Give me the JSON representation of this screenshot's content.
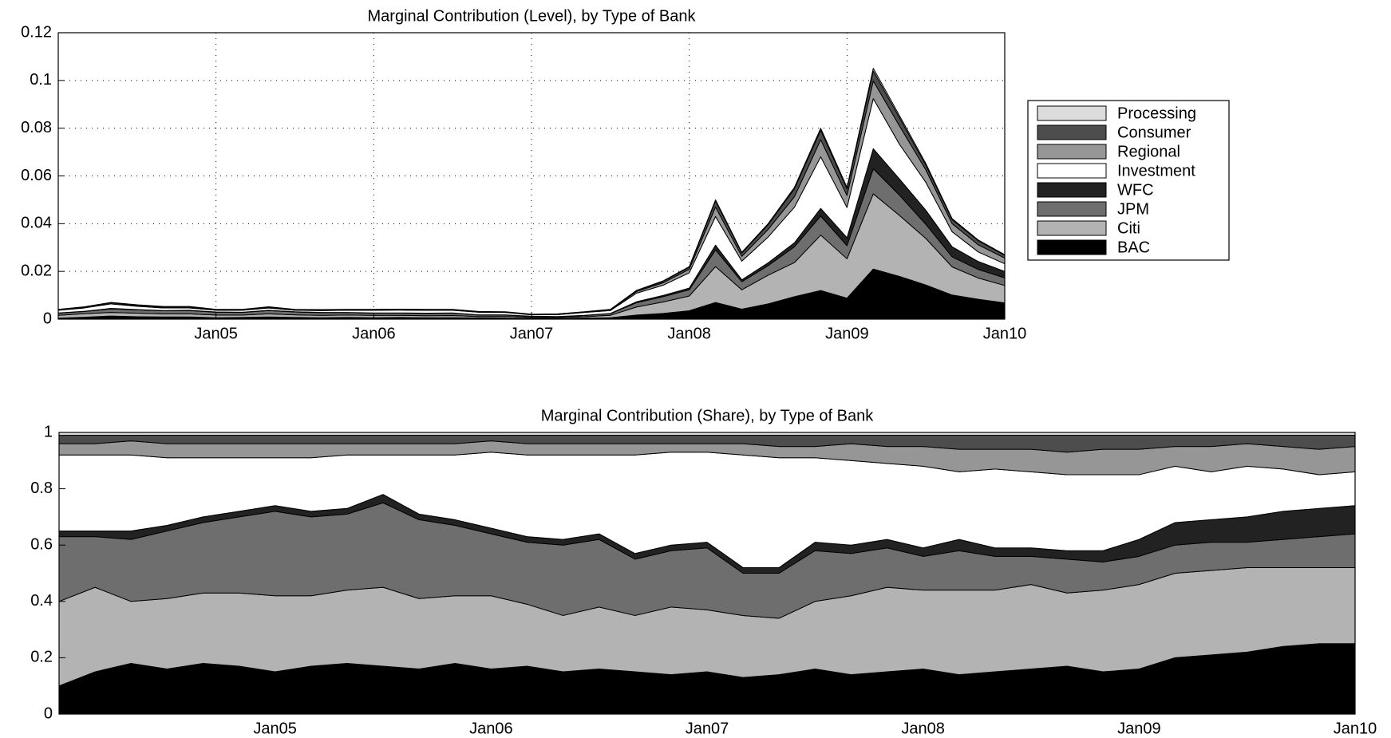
{
  "chart_data": [
    {
      "type": "area",
      "title": "Marginal Contribution (Level), by Type of Bank",
      "x": [
        "2004-01",
        "2004-03",
        "2004-05",
        "2004-07",
        "2004-09",
        "2004-11",
        "2005-01",
        "2005-03",
        "2005-05",
        "2005-07",
        "2005-09",
        "2005-11",
        "2006-01",
        "2006-03",
        "2006-05",
        "2006-07",
        "2006-09",
        "2006-11",
        "2007-01",
        "2007-03",
        "2007-05",
        "2007-07",
        "2007-09",
        "2007-11",
        "2008-01",
        "2008-03",
        "2008-05",
        "2008-07",
        "2008-09",
        "2008-11",
        "2009-01",
        "2009-03",
        "2009-05",
        "2009-07",
        "2009-09",
        "2009-11",
        "2010-01"
      ],
      "series": [
        {
          "name": "BAC",
          "color": "#000000",
          "values": [
            0.0004,
            0.0008,
            0.0013,
            0.001,
            0.0009,
            0.0009,
            0.0006,
            0.0007,
            0.0009,
            0.0007,
            0.0006,
            0.0007,
            0.0006,
            0.0007,
            0.0006,
            0.0006,
            0.0005,
            0.0004,
            0.0003,
            0.0003,
            0.0004,
            0.0006,
            0.0017,
            0.0024,
            0.0035,
            0.007,
            0.0042,
            0.0064,
            0.0094,
            0.012,
            0.0088,
            0.021,
            0.0179,
            0.0143,
            0.0101,
            0.0083,
            0.0068
          ]
        },
        {
          "name": "Citi",
          "color": "#b3b3b3",
          "values": [
            0.0012,
            0.0015,
            0.0015,
            0.0015,
            0.0013,
            0.0013,
            0.0011,
            0.001,
            0.0013,
            0.0011,
            0.001,
            0.001,
            0.001,
            0.0009,
            0.0008,
            0.0009,
            0.0006,
            0.0007,
            0.0004,
            0.0004,
            0.0006,
            0.001,
            0.0034,
            0.0048,
            0.0062,
            0.015,
            0.0081,
            0.012,
            0.0143,
            0.0232,
            0.0165,
            0.0315,
            0.0255,
            0.0195,
            0.0118,
            0.0089,
            0.0073
          ]
        },
        {
          "name": "JPM",
          "color": "#6e6e6e",
          "values": [
            0.0009,
            0.0009,
            0.0015,
            0.0014,
            0.0013,
            0.0014,
            0.0012,
            0.0011,
            0.0014,
            0.0012,
            0.0011,
            0.001,
            0.0009,
            0.0009,
            0.001,
            0.001,
            0.0006,
            0.0006,
            0.0004,
            0.0003,
            0.0005,
            0.0007,
            0.0018,
            0.0022,
            0.0026,
            0.007,
            0.0034,
            0.004,
            0.0066,
            0.008,
            0.0055,
            0.0105,
            0.0085,
            0.0059,
            0.0042,
            0.0036,
            0.0032
          ]
        },
        {
          "name": "WFC",
          "color": "#222222",
          "values": [
            0.0001,
            0.0001,
            0.0002,
            0.0001,
            0.0001,
            0.0001,
            0.0001,
            0.0001,
            0.0001,
            0.0001,
            0.0001,
            0.0001,
            0.0001,
            0.0001,
            0.0001,
            0.0001,
            0.0001,
            0.0001,
            0.0001,
            0.0001,
            0.0001,
            0.0001,
            0.0004,
            0.0005,
            0.0007,
            0.002,
            0.0008,
            0.0012,
            0.0017,
            0.0032,
            0.0033,
            0.0084,
            0.0068,
            0.0059,
            0.0042,
            0.0033,
            0.0027
          ]
        },
        {
          "name": "Investment",
          "color": "#ffffff",
          "values": [
            0.0011,
            0.0014,
            0.0019,
            0.0014,
            0.0011,
            0.001,
            0.0007,
            0.0008,
            0.001,
            0.0006,
            0.0008,
            0.0009,
            0.0011,
            0.0012,
            0.0012,
            0.0011,
            0.0011,
            0.001,
            0.0006,
            0.0008,
            0.0012,
            0.0012,
            0.0036,
            0.0043,
            0.0064,
            0.012,
            0.0078,
            0.0108,
            0.0149,
            0.0216,
            0.0127,
            0.021,
            0.0145,
            0.0117,
            0.0063,
            0.004,
            0.0032
          ]
        },
        {
          "name": "Regional",
          "color": "#969696",
          "values": [
            0.0002,
            0.0002,
            0.0004,
            0.0003,
            0.0003,
            0.0003,
            0.0002,
            0.0002,
            0.0002,
            0.0002,
            0.0002,
            0.0002,
            0.0002,
            0.0002,
            0.0002,
            0.0002,
            0.0001,
            0.0001,
            0.0001,
            0.0001,
            0.0001,
            0.0002,
            0.0007,
            0.001,
            0.0015,
            0.004,
            0.002,
            0.0032,
            0.0044,
            0.0072,
            0.005,
            0.0074,
            0.0077,
            0.0052,
            0.0034,
            0.003,
            0.0024
          ]
        },
        {
          "name": "Consumer",
          "color": "#4d4d4d",
          "values": [
            0.0001,
            0.0002,
            0.0001,
            0.0002,
            0.0002,
            0.0002,
            0.0001,
            0.0001,
            0.0002,
            0.0001,
            0.0001,
            0.0001,
            0.0001,
            0.0001,
            0.0001,
            0.0001,
            0.0001,
            0.0001,
            0.0001,
            0.0001,
            0.0001,
            0.0002,
            0.0004,
            0.0006,
            0.0009,
            0.0025,
            0.0014,
            0.002,
            0.0033,
            0.004,
            0.0028,
            0.0042,
            0.0034,
            0.002,
            0.0017,
            0.0017,
            0.0011
          ]
        },
        {
          "name": "Processing",
          "color": "#dcdcdc",
          "values": [
            0.0001,
            0.0001,
            0.0001,
            0.0001,
            0.0001,
            0.0001,
            0.0001,
            0.0001,
            0.0001,
            0.0001,
            0.0001,
            0.0001,
            0.0001,
            0.0001,
            0.0001,
            0.0001,
            0.0001,
            0.0001,
            0.0001,
            0.0001,
            0.0001,
            0.0001,
            0.0001,
            0.0002,
            0.0002,
            0.0005,
            0.0003,
            0.0004,
            0.0006,
            0.0008,
            0.0006,
            0.0011,
            0.0009,
            0.0007,
            0.0004,
            0.0003,
            0.0003
          ]
        }
      ],
      "xlim": [
        "2004-01",
        "2010-01"
      ],
      "xticks": [
        {
          "value": "2005-01",
          "label": "Jan05"
        },
        {
          "value": "2006-01",
          "label": "Jan06"
        },
        {
          "value": "2007-01",
          "label": "Jan07"
        },
        {
          "value": "2008-01",
          "label": "Jan08"
        },
        {
          "value": "2009-01",
          "label": "Jan09"
        },
        {
          "value": "2010-01",
          "label": "Jan10"
        }
      ],
      "ylim": [
        0,
        0.12
      ],
      "yticks": [
        0,
        0.02,
        0.04,
        0.06,
        0.08,
        0.1,
        0.12
      ],
      "grid": true,
      "legend": "right"
    },
    {
      "type": "area",
      "title": "Marginal Contribution (Share), by Type of Bank",
      "x": [
        "2004-01",
        "2004-03",
        "2004-05",
        "2004-07",
        "2004-09",
        "2004-11",
        "2005-01",
        "2005-03",
        "2005-05",
        "2005-07",
        "2005-09",
        "2005-11",
        "2006-01",
        "2006-03",
        "2006-05",
        "2006-07",
        "2006-09",
        "2006-11",
        "2007-01",
        "2007-03",
        "2007-05",
        "2007-07",
        "2007-09",
        "2007-11",
        "2008-01",
        "2008-03",
        "2008-05",
        "2008-07",
        "2008-09",
        "2008-11",
        "2009-01",
        "2009-03",
        "2009-05",
        "2009-07",
        "2009-09",
        "2009-11",
        "2010-01"
      ],
      "series": [
        {
          "color": "#000000",
          "values": [
            0.1,
            0.15,
            0.18,
            0.16,
            0.18,
            0.17,
            0.15,
            0.17,
            0.18,
            0.17,
            0.16,
            0.18,
            0.16,
            0.17,
            0.15,
            0.16,
            0.15,
            0.14,
            0.15,
            0.13,
            0.14,
            0.16,
            0.14,
            0.15,
            0.16,
            0.14,
            0.15,
            0.16,
            0.17,
            0.15,
            0.16,
            0.2,
            0.21,
            0.22,
            0.24,
            0.25,
            0.25
          ]
        },
        {
          "color": "#b3b3b3",
          "values": [
            0.3,
            0.3,
            0.22,
            0.25,
            0.25,
            0.26,
            0.27,
            0.25,
            0.26,
            0.28,
            0.25,
            0.24,
            0.26,
            0.22,
            0.2,
            0.22,
            0.2,
            0.24,
            0.22,
            0.22,
            0.2,
            0.24,
            0.28,
            0.3,
            0.28,
            0.3,
            0.29,
            0.3,
            0.26,
            0.29,
            0.3,
            0.3,
            0.3,
            0.3,
            0.28,
            0.27,
            0.27
          ]
        },
        {
          "color": "#6e6e6e",
          "values": [
            0.23,
            0.18,
            0.22,
            0.24,
            0.25,
            0.27,
            0.3,
            0.28,
            0.27,
            0.3,
            0.28,
            0.25,
            0.22,
            0.22,
            0.25,
            0.24,
            0.2,
            0.2,
            0.22,
            0.15,
            0.16,
            0.18,
            0.15,
            0.14,
            0.12,
            0.14,
            0.12,
            0.1,
            0.12,
            0.1,
            0.1,
            0.1,
            0.1,
            0.09,
            0.1,
            0.11,
            0.12
          ]
        },
        {
          "color": "#222222",
          "values": [
            0.02,
            0.02,
            0.03,
            0.02,
            0.02,
            0.02,
            0.02,
            0.02,
            0.02,
            0.03,
            0.02,
            0.02,
            0.02,
            0.02,
            0.02,
            0.02,
            0.02,
            0.02,
            0.02,
            0.02,
            0.02,
            0.03,
            0.03,
            0.03,
            0.03,
            0.04,
            0.03,
            0.03,
            0.03,
            0.04,
            0.06,
            0.08,
            0.08,
            0.09,
            0.1,
            0.1,
            0.1
          ]
        },
        {
          "color": "#ffffff",
          "values": [
            0.27,
            0.27,
            0.27,
            0.24,
            0.21,
            0.19,
            0.17,
            0.19,
            0.19,
            0.14,
            0.21,
            0.23,
            0.27,
            0.29,
            0.3,
            0.28,
            0.35,
            0.33,
            0.32,
            0.4,
            0.39,
            0.3,
            0.3,
            0.27,
            0.29,
            0.24,
            0.28,
            0.27,
            0.27,
            0.27,
            0.23,
            0.2,
            0.17,
            0.18,
            0.15,
            0.12,
            0.12
          ]
        },
        {
          "color": "#969696",
          "values": [
            0.04,
            0.04,
            0.05,
            0.05,
            0.05,
            0.05,
            0.05,
            0.05,
            0.04,
            0.04,
            0.04,
            0.04,
            0.04,
            0.04,
            0.04,
            0.04,
            0.04,
            0.03,
            0.03,
            0.04,
            0.04,
            0.04,
            0.06,
            0.06,
            0.07,
            0.08,
            0.07,
            0.08,
            0.08,
            0.09,
            0.09,
            0.07,
            0.09,
            0.08,
            0.08,
            0.09,
            0.09
          ]
        },
        {
          "color": "#4d4d4d",
          "values": [
            0.03,
            0.03,
            0.02,
            0.03,
            0.03,
            0.03,
            0.03,
            0.03,
            0.03,
            0.03,
            0.03,
            0.03,
            0.02,
            0.03,
            0.03,
            0.03,
            0.03,
            0.03,
            0.03,
            0.03,
            0.04,
            0.04,
            0.03,
            0.04,
            0.04,
            0.05,
            0.05,
            0.05,
            0.06,
            0.05,
            0.05,
            0.04,
            0.04,
            0.03,
            0.04,
            0.05,
            0.04
          ]
        },
        {
          "color": "#dcdcdc",
          "values": [
            0.01,
            0.01,
            0.01,
            0.01,
            0.01,
            0.01,
            0.01,
            0.01,
            0.01,
            0.01,
            0.01,
            0.01,
            0.01,
            0.01,
            0.01,
            0.01,
            0.01,
            0.01,
            0.01,
            0.01,
            0.01,
            0.01,
            0.01,
            0.01,
            0.01,
            0.01,
            0.01,
            0.01,
            0.01,
            0.01,
            0.01,
            0.01,
            0.01,
            0.01,
            0.01,
            0.01,
            0.01
          ]
        }
      ],
      "xlim": [
        "2004-01",
        "2010-01"
      ],
      "xticks": [
        {
          "value": "2005-01",
          "label": "Jan05"
        },
        {
          "value": "2006-01",
          "label": "Jan06"
        },
        {
          "value": "2007-01",
          "label": "Jan07"
        },
        {
          "value": "2008-01",
          "label": "Jan08"
        },
        {
          "value": "2009-01",
          "label": "Jan09"
        },
        {
          "value": "2010-01",
          "label": "Jan10"
        }
      ],
      "ylim": [
        0,
        1
      ],
      "yticks": [
        0,
        0.2,
        0.4,
        0.6,
        0.8,
        1
      ],
      "grid": false
    }
  ]
}
